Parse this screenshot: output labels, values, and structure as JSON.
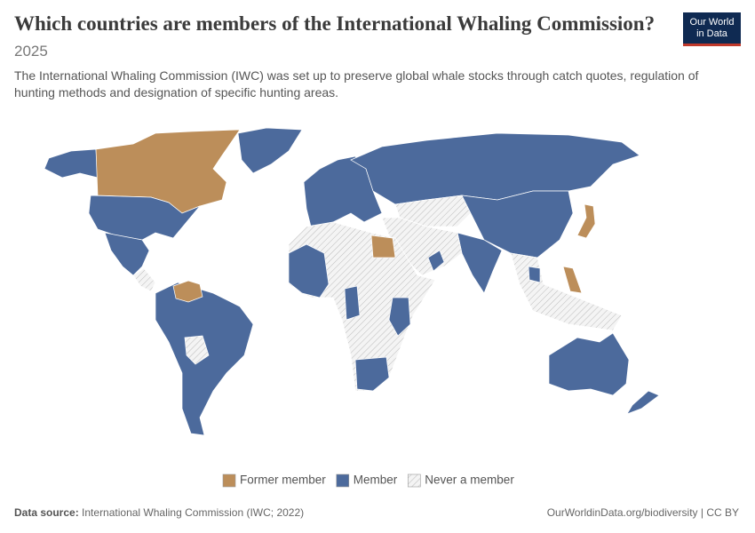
{
  "header": {
    "title": "Which countries are members of the International Whaling Commission?",
    "year": "2025",
    "description": "The International Whaling Commission (IWC) was set up to preserve global whale stocks through catch quotes, regulation of hunting methods and designation of specific hunting areas."
  },
  "logo": [
    "Our World",
    "in Data"
  ],
  "legend": [
    {
      "label": "Former member",
      "color": "#bc8e5a"
    },
    {
      "label": "Member",
      "color": "#4c6a9c"
    },
    {
      "label": "Never a member",
      "color": "#f4f4f4"
    }
  ],
  "footer": {
    "source_label": "Data source:",
    "source": "International Whaling Commission (IWC; 2022)",
    "link": "OurWorldinData.org/biodiversity | CC BY"
  }
}
